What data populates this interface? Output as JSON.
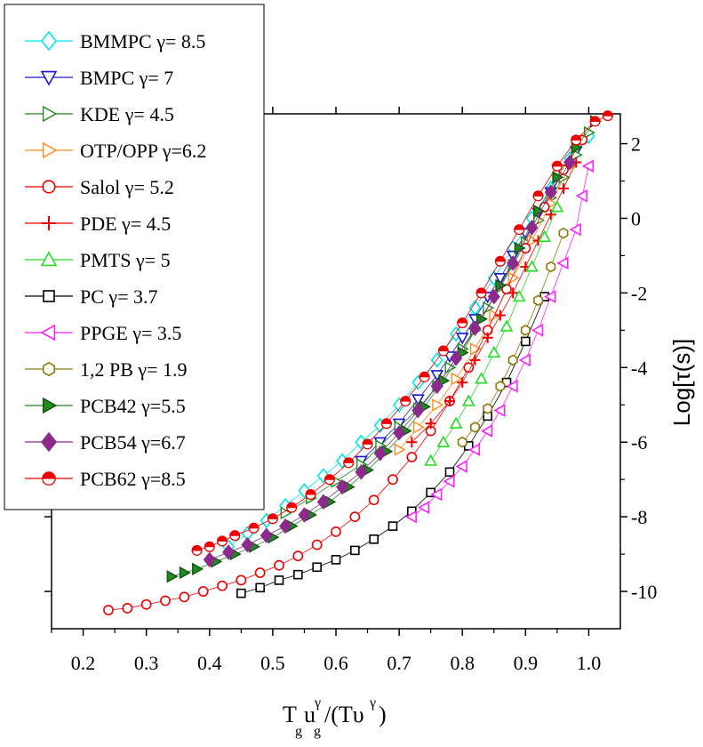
{
  "chart_data": {
    "type": "scatter",
    "title": "",
    "xlabel": "T_g u_g^γ/(Tυ^γ)",
    "ylabel": "Log[τ(s)]",
    "xlim": [
      0.15,
      1.05
    ],
    "ylim": [
      -11,
      2.8
    ],
    "x_ticks": [
      "0.2",
      "0.3",
      "0.4",
      "0.5",
      "0.6",
      "0.7",
      "0.8",
      "0.9",
      "1.0"
    ],
    "y_ticks": [
      "2",
      "0",
      "-2",
      "-4",
      "-6",
      "-8",
      "-10"
    ],
    "y_axis_side": "right",
    "grid": false,
    "legend_position": "top-left",
    "series": [
      {
        "name": "BMMPC γ= 8.5",
        "color": "#00e5e5",
        "marker": "diamond-open",
        "points": [
          [
            0.43,
            -8.8
          ],
          [
            0.46,
            -8.45
          ],
          [
            0.49,
            -8.1
          ],
          [
            0.52,
            -7.7
          ],
          [
            0.55,
            -7.3
          ],
          [
            0.58,
            -6.9
          ],
          [
            0.61,
            -6.5
          ],
          [
            0.64,
            -6.0
          ],
          [
            0.67,
            -5.55
          ],
          [
            0.7,
            -5.0
          ],
          [
            0.73,
            -4.4
          ],
          [
            0.76,
            -3.8
          ],
          [
            0.79,
            -3.1
          ],
          [
            0.82,
            -2.4
          ],
          [
            0.85,
            -1.6
          ],
          [
            0.88,
            -0.8
          ],
          [
            0.91,
            0.0
          ],
          [
            0.94,
            0.8
          ],
          [
            0.97,
            1.6
          ],
          [
            1.0,
            2.2
          ]
        ]
      },
      {
        "name": "BMPC γ= 7",
        "color": "#1a1acc",
        "marker": "triangle-down-open",
        "points": [
          [
            0.64,
            -6.5
          ],
          [
            0.67,
            -6.0
          ],
          [
            0.7,
            -5.5
          ],
          [
            0.73,
            -4.85
          ],
          [
            0.76,
            -4.2
          ],
          [
            0.78,
            -3.7
          ],
          [
            0.8,
            -3.2
          ],
          [
            0.82,
            -2.7
          ],
          [
            0.84,
            -2.1
          ],
          [
            0.86,
            -1.6
          ],
          [
            0.88,
            -1.0
          ],
          [
            0.9,
            -0.4
          ],
          [
            0.92,
            0.15
          ],
          [
            0.94,
            0.7
          ],
          [
            0.96,
            1.3
          ],
          [
            0.98,
            1.8
          ]
        ]
      },
      {
        "name": "KDE γ= 4.5",
        "color": "#1e8c1e",
        "marker": "triangle-right-open",
        "points": [
          [
            0.52,
            -7.9
          ],
          [
            0.56,
            -7.5
          ],
          [
            0.6,
            -7.05
          ],
          [
            0.64,
            -6.6
          ],
          [
            0.67,
            -6.1
          ],
          [
            0.7,
            -5.6
          ],
          [
            0.73,
            -5.1
          ],
          [
            0.76,
            -4.5
          ],
          [
            0.78,
            -4.0
          ],
          [
            0.8,
            -3.5
          ],
          [
            0.82,
            -3.0
          ],
          [
            0.84,
            -2.4
          ],
          [
            0.86,
            -1.85
          ],
          [
            0.88,
            -1.25
          ],
          [
            0.9,
            -0.65
          ],
          [
            0.92,
            -0.05
          ],
          [
            0.94,
            0.55
          ],
          [
            0.96,
            1.1
          ],
          [
            0.98,
            1.7
          ],
          [
            1.0,
            2.3
          ]
        ]
      },
      {
        "name": "OTP/OPP γ=6.2",
        "color": "#ff8c1a",
        "marker": "triangle-right-open",
        "points": [
          [
            0.7,
            -6.2
          ],
          [
            0.73,
            -5.6
          ],
          [
            0.76,
            -5.0
          ],
          [
            0.79,
            -4.3
          ],
          [
            0.82,
            -3.5
          ],
          [
            0.85,
            -2.6
          ],
          [
            0.88,
            -1.6
          ],
          [
            0.91,
            -0.6
          ],
          [
            0.94,
            0.4
          ],
          [
            0.97,
            1.4
          ]
        ]
      },
      {
        "name": "Salol γ= 5.2",
        "color": "#ee0000",
        "marker": "circle-open",
        "points": [
          [
            0.24,
            -10.5
          ],
          [
            0.27,
            -10.45
          ],
          [
            0.3,
            -10.35
          ],
          [
            0.33,
            -10.25
          ],
          [
            0.36,
            -10.15
          ],
          [
            0.39,
            -10.0
          ],
          [
            0.42,
            -9.85
          ],
          [
            0.45,
            -9.7
          ],
          [
            0.48,
            -9.5
          ],
          [
            0.51,
            -9.3
          ],
          [
            0.54,
            -9.05
          ],
          [
            0.57,
            -8.75
          ],
          [
            0.6,
            -8.4
          ],
          [
            0.63,
            -8.0
          ],
          [
            0.66,
            -7.55
          ],
          [
            0.69,
            -7.0
          ],
          [
            0.72,
            -6.4
          ],
          [
            0.75,
            -5.7
          ],
          [
            0.78,
            -4.9
          ],
          [
            0.81,
            -4.0
          ],
          [
            0.84,
            -3.0
          ],
          [
            0.87,
            -1.9
          ],
          [
            0.9,
            -0.8
          ],
          [
            0.93,
            0.3
          ],
          [
            0.96,
            1.3
          ],
          [
            0.99,
            2.1
          ]
        ]
      },
      {
        "name": "PDE γ= 4.5",
        "color": "#ee0000",
        "marker": "plus",
        "points": [
          [
            0.72,
            -6.0
          ],
          [
            0.75,
            -5.5
          ],
          [
            0.78,
            -4.9
          ],
          [
            0.8,
            -4.4
          ],
          [
            0.82,
            -3.8
          ],
          [
            0.84,
            -3.2
          ],
          [
            0.86,
            -2.6
          ],
          [
            0.88,
            -2.0
          ],
          [
            0.9,
            -1.3
          ],
          [
            0.92,
            -0.6
          ],
          [
            0.94,
            0.1
          ],
          [
            0.96,
            0.8
          ],
          [
            0.98,
            1.5
          ]
        ]
      },
      {
        "name": "PMTS γ= 5",
        "color": "#22dd22",
        "marker": "triangle-up-open",
        "points": [
          [
            0.75,
            -6.5
          ],
          [
            0.77,
            -6.0
          ],
          [
            0.79,
            -5.5
          ],
          [
            0.81,
            -4.9
          ],
          [
            0.83,
            -4.3
          ],
          [
            0.85,
            -3.6
          ],
          [
            0.87,
            -2.9
          ],
          [
            0.89,
            -2.1
          ],
          [
            0.91,
            -1.3
          ],
          [
            0.93,
            -0.5
          ],
          [
            0.95,
            0.3
          ]
        ]
      },
      {
        "name": "PC γ= 3.7",
        "color": "#000000",
        "marker": "square-open",
        "points": [
          [
            0.45,
            -10.05
          ],
          [
            0.48,
            -9.9
          ],
          [
            0.51,
            -9.7
          ],
          [
            0.54,
            -9.55
          ],
          [
            0.57,
            -9.35
          ],
          [
            0.6,
            -9.15
          ],
          [
            0.63,
            -8.9
          ],
          [
            0.66,
            -8.6
          ],
          [
            0.69,
            -8.25
          ],
          [
            0.72,
            -7.85
          ],
          [
            0.75,
            -7.35
          ],
          [
            0.78,
            -6.8
          ],
          [
            0.81,
            -6.1
          ],
          [
            0.84,
            -5.3
          ],
          [
            0.87,
            -4.4
          ],
          [
            0.9,
            -3.3
          ],
          [
            0.93,
            -2.1
          ]
        ]
      },
      {
        "name": "PPGE γ= 3.5",
        "color": "#ff22ff",
        "marker": "triangle-left-open",
        "points": [
          [
            0.72,
            -8.0
          ],
          [
            0.74,
            -7.75
          ],
          [
            0.76,
            -7.4
          ],
          [
            0.78,
            -7.05
          ],
          [
            0.8,
            -6.65
          ],
          [
            0.82,
            -6.2
          ],
          [
            0.84,
            -5.7
          ],
          [
            0.86,
            -5.15
          ],
          [
            0.88,
            -4.5
          ],
          [
            0.9,
            -3.8
          ],
          [
            0.92,
            -3.0
          ],
          [
            0.94,
            -2.1
          ],
          [
            0.96,
            -1.2
          ],
          [
            0.98,
            -0.3
          ],
          [
            0.99,
            0.6
          ],
          [
            1.0,
            1.4
          ]
        ]
      },
      {
        "name": "1,2 PB γ= 1.9",
        "color": "#8c7a0a",
        "marker": "hexagon-open",
        "points": [
          [
            0.8,
            -6.0
          ],
          [
            0.82,
            -5.6
          ],
          [
            0.84,
            -5.1
          ],
          [
            0.86,
            -4.5
          ],
          [
            0.88,
            -3.8
          ],
          [
            0.9,
            -3.0
          ],
          [
            0.92,
            -2.2
          ],
          [
            0.94,
            -1.3
          ],
          [
            0.96,
            -0.4
          ]
        ]
      },
      {
        "name": "PCB42 γ=5.5",
        "color": "#1e8c1e",
        "marker": "triangle-right-filled",
        "points": [
          [
            0.34,
            -9.6
          ],
          [
            0.36,
            -9.5
          ],
          [
            0.38,
            -9.4
          ],
          [
            0.41,
            -9.2
          ],
          [
            0.44,
            -9.0
          ],
          [
            0.47,
            -8.8
          ],
          [
            0.5,
            -8.55
          ],
          [
            0.53,
            -8.25
          ],
          [
            0.56,
            -7.95
          ],
          [
            0.59,
            -7.6
          ],
          [
            0.62,
            -7.2
          ],
          [
            0.65,
            -6.75
          ],
          [
            0.68,
            -6.25
          ],
          [
            0.71,
            -5.7
          ],
          [
            0.74,
            -5.05
          ],
          [
            0.77,
            -4.35
          ],
          [
            0.8,
            -3.6
          ],
          [
            0.83,
            -2.7
          ],
          [
            0.86,
            -1.8
          ],
          [
            0.89,
            -0.8
          ],
          [
            0.92,
            0.2
          ],
          [
            0.95,
            1.1
          ],
          [
            0.98,
            1.9
          ],
          [
            1.01,
            2.6
          ]
        ]
      },
      {
        "name": "PCB54 γ=6.7",
        "color": "#8c2a8c",
        "marker": "diamond-filled",
        "points": [
          [
            0.4,
            -9.15
          ],
          [
            0.43,
            -8.95
          ],
          [
            0.46,
            -8.75
          ],
          [
            0.49,
            -8.5
          ],
          [
            0.52,
            -8.25
          ],
          [
            0.55,
            -7.95
          ],
          [
            0.58,
            -7.6
          ],
          [
            0.61,
            -7.2
          ],
          [
            0.64,
            -6.8
          ],
          [
            0.67,
            -6.3
          ],
          [
            0.7,
            -5.75
          ],
          [
            0.73,
            -5.15
          ],
          [
            0.76,
            -4.5
          ],
          [
            0.79,
            -3.75
          ],
          [
            0.82,
            -2.95
          ],
          [
            0.85,
            -2.1
          ],
          [
            0.88,
            -1.2
          ],
          [
            0.91,
            -0.25
          ],
          [
            0.94,
            0.7
          ],
          [
            0.97,
            1.5
          ]
        ]
      },
      {
        "name": "PCB62 γ=8.5",
        "color": "#ee0000",
        "marker": "circle-half",
        "points": [
          [
            0.38,
            -8.9
          ],
          [
            0.4,
            -8.8
          ],
          [
            0.42,
            -8.65
          ],
          [
            0.44,
            -8.5
          ],
          [
            0.47,
            -8.3
          ],
          [
            0.5,
            -8.05
          ],
          [
            0.53,
            -7.75
          ],
          [
            0.56,
            -7.4
          ],
          [
            0.59,
            -7.0
          ],
          [
            0.62,
            -6.55
          ],
          [
            0.65,
            -6.05
          ],
          [
            0.68,
            -5.5
          ],
          [
            0.71,
            -4.9
          ],
          [
            0.74,
            -4.25
          ],
          [
            0.77,
            -3.55
          ],
          [
            0.8,
            -2.8
          ],
          [
            0.83,
            -2.0
          ],
          [
            0.86,
            -1.15
          ],
          [
            0.89,
            -0.3
          ],
          [
            0.92,
            0.6
          ],
          [
            0.95,
            1.4
          ],
          [
            0.98,
            2.1
          ],
          [
            1.01,
            2.6
          ],
          [
            1.03,
            2.75
          ]
        ]
      }
    ]
  }
}
